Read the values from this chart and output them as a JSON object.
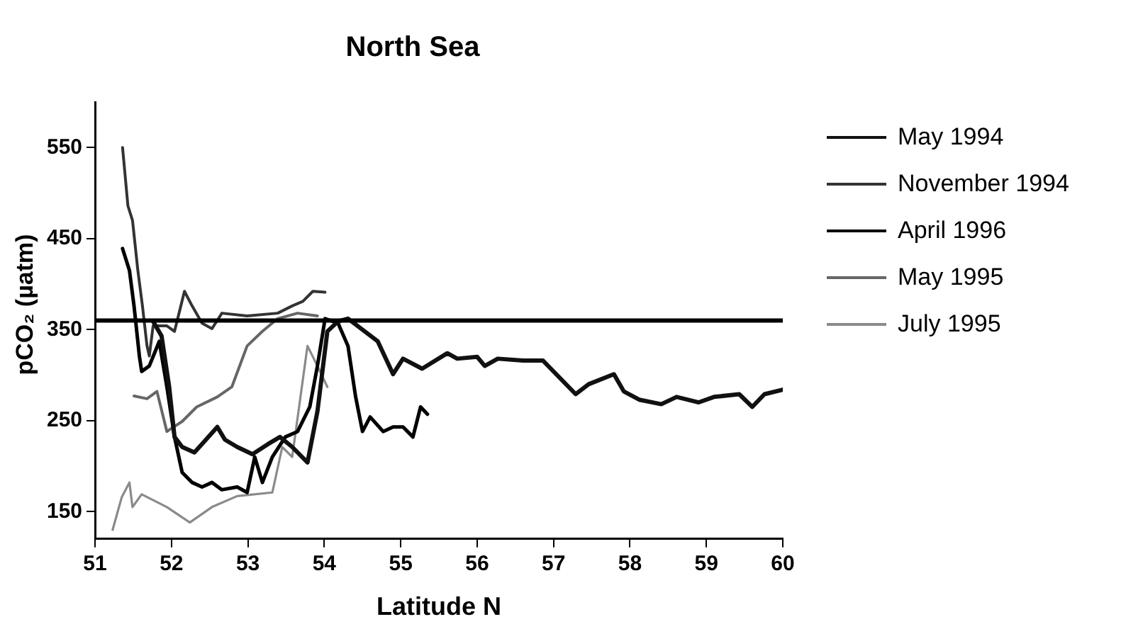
{
  "chart_data": {
    "type": "line",
    "title": "North Sea",
    "xlabel": "Latitude N",
    "ylabel": "pCO₂ (µatm)",
    "xlim": [
      51,
      60
    ],
    "xticks": [
      51,
      52,
      53,
      54,
      55,
      56,
      57,
      58,
      59,
      60
    ],
    "ylim": [
      120,
      600
    ],
    "yticks": [
      150,
      250,
      350,
      450,
      550
    ],
    "grid": false,
    "legend": "right",
    "marker": "none",
    "line_style": "solid",
    "ref_lines": [
      {
        "axis": "y",
        "value": 360,
        "color": "#000000"
      }
    ],
    "series": [
      {
        "name": "May 1994",
        "color": "#111111",
        "x": [
          51.76,
          51.87,
          51.97,
          52.04,
          52.14,
          52.3,
          52.43,
          52.6,
          52.7,
          52.86,
          53.06,
          53.26,
          53.42,
          53.58,
          53.78,
          53.91,
          54.04,
          54.18,
          54.31,
          54.7,
          54.9,
          55.03,
          55.28,
          55.61,
          55.74,
          56.0,
          56.1,
          56.27,
          56.6,
          56.86,
          57.29,
          57.46,
          57.79,
          57.92,
          58.12,
          58.41,
          58.61,
          58.9,
          59.1,
          59.43,
          59.6,
          59.76,
          60.0
        ],
        "values": [
          359,
          343,
          287,
          232,
          221,
          215,
          227,
          243,
          229,
          221,
          213,
          224,
          232,
          221,
          204,
          260,
          348,
          359,
          362,
          337,
          301,
          318,
          307,
          324,
          318,
          320,
          310,
          318,
          316,
          316,
          279,
          290,
          301,
          282,
          273,
          268,
          276,
          270,
          276,
          279,
          265,
          279,
          284
        ]
      },
      {
        "name": "November 1994",
        "color": "#333333",
        "x": [
          51.36,
          51.43,
          51.49,
          51.56,
          51.62,
          51.68,
          51.71,
          51.76,
          51.94,
          52.04,
          52.17,
          52.27,
          52.4,
          52.53,
          52.66,
          52.99,
          53.39,
          53.58,
          53.72,
          53.85,
          54.01
        ],
        "values": [
          550,
          486,
          470,
          415,
          376,
          332,
          321,
          354,
          354,
          348,
          392,
          376,
          357,
          351,
          368,
          365,
          368,
          376,
          381,
          392,
          391
        ]
      },
      {
        "name": "April 1996",
        "color": "#000000",
        "x": [
          51.36,
          51.45,
          51.51,
          51.58,
          51.61,
          51.71,
          51.84,
          51.94,
          52.04,
          52.14,
          52.27,
          52.4,
          52.53,
          52.66,
          52.86,
          52.99,
          53.09,
          53.19,
          53.32,
          53.49,
          53.65,
          53.81,
          53.91,
          54.01,
          54.18,
          54.31,
          54.41,
          54.5,
          54.6,
          54.77,
          54.9,
          55.03,
          55.16,
          55.26,
          55.35
        ],
        "values": [
          439,
          415,
          376,
          321,
          304,
          310,
          337,
          287,
          232,
          193,
          182,
          177,
          182,
          174,
          177,
          171,
          210,
          182,
          210,
          232,
          238,
          265,
          310,
          362,
          357,
          332,
          276,
          238,
          254,
          238,
          243,
          243,
          232,
          265,
          257
        ]
      },
      {
        "name": "May 1995",
        "color": "#666666",
        "x": [
          51.51,
          51.68,
          51.81,
          51.94,
          52.14,
          52.33,
          52.6,
          52.79,
          52.99,
          53.19,
          53.39,
          53.65,
          53.91
        ],
        "values": [
          277,
          274,
          282,
          238,
          249,
          265,
          276,
          287,
          332,
          348,
          362,
          368,
          365
        ]
      },
      {
        "name": "July 1995",
        "color": "#8a8a8a",
        "x": [
          51.23,
          51.35,
          51.45,
          51.49,
          51.61,
          51.94,
          52.24,
          52.53,
          52.86,
          53.32,
          53.45,
          53.58,
          53.78,
          53.91,
          54.04
        ],
        "values": [
          130,
          166,
          182,
          155,
          169,
          155,
          138,
          155,
          167,
          171,
          221,
          210,
          332,
          310,
          287
        ]
      }
    ]
  }
}
